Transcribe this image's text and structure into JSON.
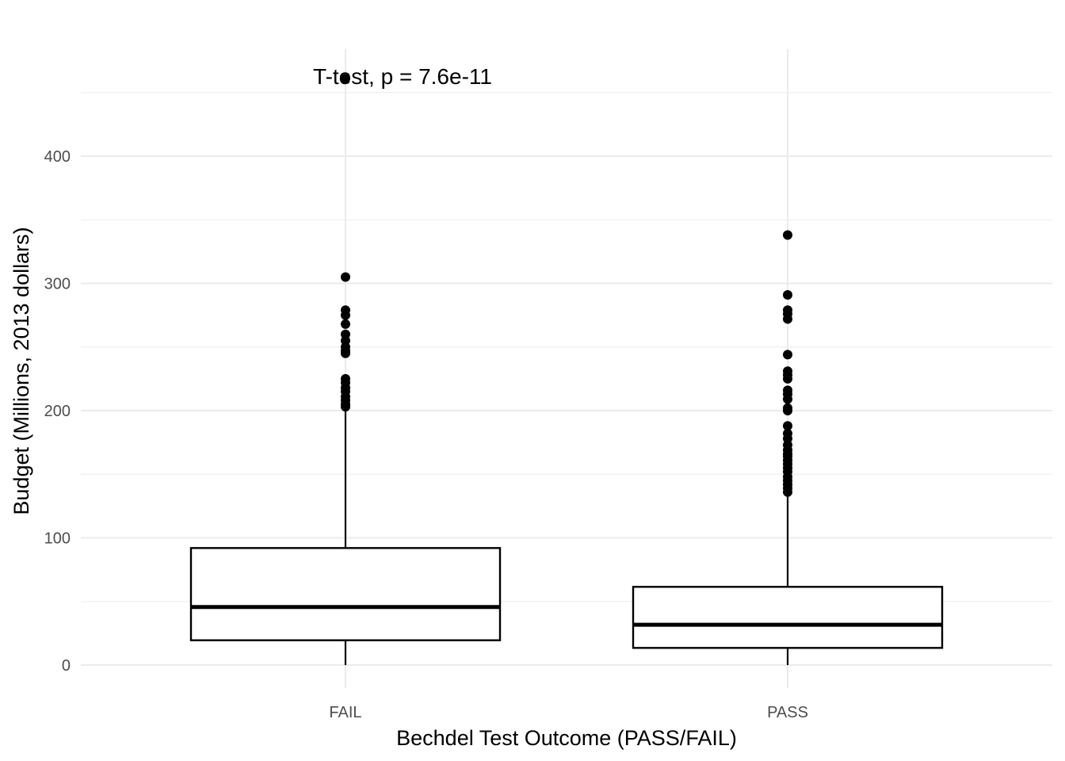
{
  "chart_data": {
    "type": "boxplot",
    "title": "",
    "xlabel": "Bechdel Test Outcome (PASS/FAIL)",
    "ylabel": "Budget (Millions, 2013 dollars)",
    "ylim": [
      -18,
      482
    ],
    "y_ticks": [
      0,
      100,
      200,
      300,
      400
    ],
    "y_tick_labels": [
      "0",
      "100",
      "200",
      "300",
      "400"
    ],
    "grid": true,
    "annotation": "T-test, p = 7.6e-11",
    "annotation_anchor": {
      "category": "FAIL",
      "y": 463
    },
    "categories": [
      "FAIL",
      "PASS"
    ],
    "boxes": [
      {
        "category": "FAIL",
        "whisker_low": 0,
        "q1": 19.5,
        "median": 45.6,
        "q3": 92,
        "whisker_high": 202,
        "outliers": [
          461,
          305,
          279,
          275,
          268,
          260,
          255,
          250,
          247,
          245,
          225,
          222,
          218,
          215,
          211,
          208,
          205,
          203
        ]
      },
      {
        "category": "PASS",
        "whisker_low": 0,
        "q1": 13.5,
        "median": 31.7,
        "q3": 61.5,
        "whisker_high": 135,
        "outliers": [
          338,
          291,
          279,
          276,
          272,
          244,
          231,
          228,
          225,
          216,
          213,
          209,
          202,
          200,
          188,
          182,
          178,
          173,
          169,
          166,
          164,
          161,
          158,
          155,
          152,
          148,
          145,
          142,
          139,
          136
        ]
      }
    ]
  }
}
